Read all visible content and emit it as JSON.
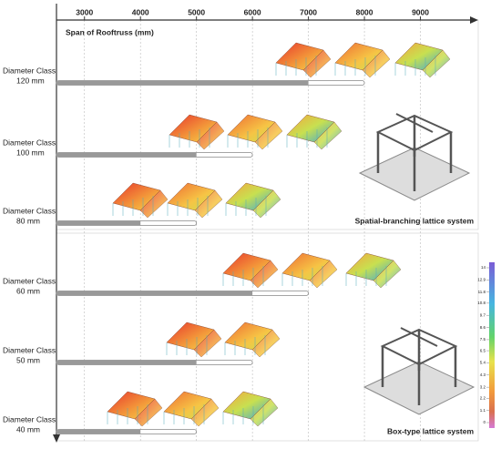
{
  "axis": {
    "title": "Span of Rooftruss  (mm)",
    "xlim": [
      2500,
      10000
    ],
    "xticks": [
      3000,
      4000,
      5000,
      6000,
      7000,
      8000,
      9000
    ]
  },
  "rows": [
    {
      "class": "Diameter Class",
      "size": "120 mm",
      "bar": 7000,
      "range_end": 8000
    },
    {
      "class": "Diameter Class",
      "size": "100 mm",
      "bar": 5000,
      "range_end": 6000
    },
    {
      "class": "Diameter Class",
      "size": "80 mm",
      "bar": 4000,
      "range_end": 5000
    },
    {
      "class": "Diameter Class",
      "size": "60 mm",
      "bar": 6000,
      "range_end": 7000
    },
    {
      "class": "Diameter Class",
      "size": "50 mm",
      "bar": 5000,
      "range_end": 6000
    },
    {
      "class": "Diameter Class",
      "size": "40 mm",
      "bar": 4000,
      "range_end": 5000
    }
  ],
  "panels": [
    "Spatial-branching lattice system",
    "Box-type lattice system"
  ],
  "colorbar": {
    "ticks": [
      {
        "value": 14,
        "label": "14"
      },
      {
        "value": 12.9,
        "label": "12.9"
      },
      {
        "value": 11.8,
        "label": "11.8"
      },
      {
        "value": 10.8,
        "label": "10.8"
      },
      {
        "value": 9.7,
        "label": "9.7"
      },
      {
        "value": 8.6,
        "label": "8.6"
      },
      {
        "value": 7.5,
        "label": "7.5"
      },
      {
        "value": 6.5,
        "label": "6.5"
      },
      {
        "value": 5.4,
        "label": "5.4"
      },
      {
        "value": 4.3,
        "label": "4.3"
      },
      {
        "value": 3.2,
        "label": "3.2"
      },
      {
        "value": 2.2,
        "label": "2.2"
      },
      {
        "value": 1.1,
        "label": "1.1"
      },
      {
        "value": 0,
        "label": "0"
      }
    ]
  }
}
